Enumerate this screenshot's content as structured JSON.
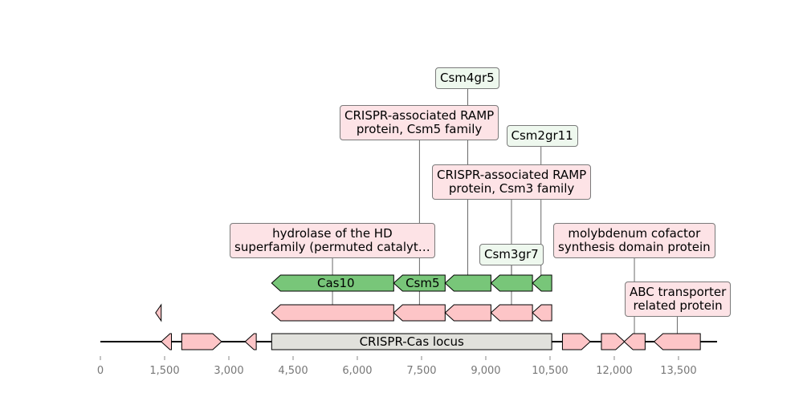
{
  "axis": {
    "ticks": [
      0,
      1500,
      3000,
      4500,
      6000,
      7500,
      9000,
      10500,
      12000,
      13500
    ],
    "tick_labels": [
      "0",
      "1,500",
      "3,000",
      "4,500",
      "6,000",
      "7,500",
      "9,000",
      "10,500",
      "12,000",
      "13,500"
    ]
  },
  "locus": {
    "label": "CRISPR-Cas locus",
    "start": 4000,
    "end": 10540
  },
  "colors": {
    "green": "#78c679",
    "pink": "#fdc5c7",
    "locus": "#e1e1dc",
    "green_label": "#eef8ee",
    "pink_label": "#fde3e6"
  },
  "genome_features": [
    {
      "start": 1420,
      "end": 1660,
      "strand": -1
    },
    {
      "start": 1900,
      "end": 2830,
      "strand": 1
    },
    {
      "start": 3380,
      "end": 3640,
      "strand": -1
    },
    {
      "start": 10790,
      "end": 11440,
      "strand": 1
    },
    {
      "start": 11700,
      "end": 12240,
      "strand": 1
    },
    {
      "start": 12230,
      "end": 12720,
      "strand": -1
    },
    {
      "start": 12930,
      "end": 14010,
      "strand": -1
    }
  ],
  "green_genes": [
    {
      "label": "Cas10",
      "start": 4000,
      "end": 6850,
      "strand": -1
    },
    {
      "label": "Csm5",
      "start": 6850,
      "end": 8050,
      "strand": -1
    },
    {
      "label": "",
      "start": 8050,
      "end": 9120,
      "strand": -1
    },
    {
      "label": "",
      "start": 9120,
      "end": 10090,
      "strand": -1
    },
    {
      "label": "",
      "start": 10090,
      "end": 10540,
      "strand": -1
    }
  ],
  "pink_genes": [
    {
      "start": 1290,
      "end": 1420,
      "strand": -1
    },
    {
      "start": 4000,
      "end": 6850,
      "strand": -1
    },
    {
      "start": 6850,
      "end": 8050,
      "strand": -1
    },
    {
      "start": 8050,
      "end": 9120,
      "strand": -1
    },
    {
      "start": 9120,
      "end": 10090,
      "strand": -1
    },
    {
      "start": 10090,
      "end": 10540,
      "strand": -1
    }
  ],
  "annotations": [
    {
      "text": [
        "Csm4gr5"
      ],
      "style": "green",
      "anchor": 8580,
      "top_row": "green"
    },
    {
      "text": [
        "CRISPR-associated RAMP",
        "protein, Csm5 family"
      ],
      "style": "pink",
      "anchor": 7450,
      "top_row": "pink"
    },
    {
      "text": [
        "Csm2gr11"
      ],
      "style": "green",
      "anchor": 10290,
      "top_row": "green"
    },
    {
      "text": [
        "CRISPR-associated RAMP",
        "protein, Csm3 family"
      ],
      "style": "pink",
      "anchor": 9600,
      "top_row": "pink"
    },
    {
      "text": [
        "hydrolase of the HD",
        "superfamily (permuted catalyt…"
      ],
      "style": "pink",
      "anchor": 5420,
      "top_row": "pink"
    },
    {
      "text": [
        "Csm3gr7"
      ],
      "style": "green",
      "anchor": 9600,
      "top_row": "green"
    },
    {
      "text": [
        "molybdenum cofactor",
        "synthesis domain protein"
      ],
      "style": "pink",
      "anchor": 12470,
      "top_row": "genome"
    },
    {
      "text": [
        "ABC transporter",
        "related protein"
      ],
      "style": "pink",
      "anchor": 13470,
      "top_row": "genome"
    }
  ]
}
